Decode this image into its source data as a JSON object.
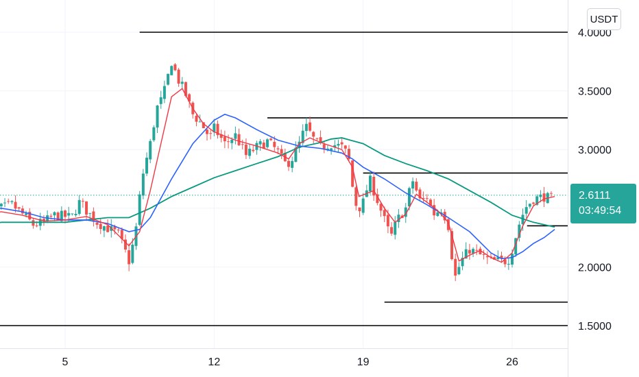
{
  "currency_label": "USDT",
  "last_price": {
    "value": "2.6111",
    "countdown": "03:49:54",
    "color": "#26a69a"
  },
  "colors": {
    "up": "#26a69a",
    "down": "#ef5350",
    "ma_fast": "#f23645",
    "ma_mid": "#2962ff",
    "ma_slow": "#089981",
    "grid": "#f0f3fa",
    "hline": "#000000"
  },
  "chart_data": {
    "type": "candlestick",
    "x_tick_labels": [
      "5",
      "12",
      "19",
      "26"
    ],
    "y_tick_labels": [
      "4.0000",
      "3.5000",
      "3.0000",
      "2.0000",
      "1.5000"
    ],
    "ylim": [
      1.42,
      4.25
    ],
    "grid": true,
    "horizontal_levels": [
      {
        "price": 4.0,
        "from_day": 8.5
      },
      {
        "price": 3.27,
        "from_day": 14.5
      },
      {
        "price": 2.8,
        "from_day": 19
      },
      {
        "price": 2.35,
        "from_day": 26.7
      },
      {
        "price": 1.7,
        "from_day": 20
      },
      {
        "price": 1.5,
        "from_day": 1
      }
    ],
    "close_path": [
      [
        1.0,
        2.48
      ],
      [
        1.5,
        2.47
      ],
      [
        2.0,
        2.5
      ],
      [
        2.5,
        2.53
      ],
      [
        3.0,
        2.45
      ],
      [
        3.5,
        2.36
      ],
      [
        4.0,
        2.38
      ],
      [
        4.5,
        2.44
      ],
      [
        5.0,
        2.43
      ],
      [
        5.3,
        2.42
      ],
      [
        5.7,
        2.56
      ],
      [
        6.0,
        2.48
      ],
      [
        6.5,
        2.38
      ],
      [
        7.0,
        2.33
      ],
      [
        7.5,
        2.28
      ],
      [
        8.0,
        2.05
      ],
      [
        8.3,
        2.28
      ],
      [
        8.6,
        2.75
      ],
      [
        9.0,
        3.05
      ],
      [
        9.3,
        3.35
      ],
      [
        9.6,
        3.45
      ],
      [
        10.0,
        3.75
      ],
      [
        10.3,
        3.6
      ],
      [
        10.6,
        3.5
      ],
      [
        11.0,
        3.3
      ],
      [
        11.4,
        3.22
      ],
      [
        11.8,
        3.1
      ],
      [
        12.0,
        3.18
      ],
      [
        12.5,
        3.05
      ],
      [
        13.0,
        3.12
      ],
      [
        13.5,
        2.95
      ],
      [
        14.0,
        3.02
      ],
      [
        14.5,
        3.07
      ],
      [
        15.0,
        2.98
      ],
      [
        15.3,
        2.88
      ],
      [
        15.6,
        2.9
      ],
      [
        16.0,
        3.05
      ],
      [
        16.3,
        3.2
      ],
      [
        16.7,
        3.08
      ],
      [
        17.0,
        3.02
      ],
      [
        17.5,
        3.05
      ],
      [
        18.0,
        3.02
      ],
      [
        18.3,
        2.95
      ],
      [
        18.6,
        2.55
      ],
      [
        18.8,
        2.5
      ],
      [
        19.0,
        2.55
      ],
      [
        19.3,
        2.75
      ],
      [
        19.6,
        2.6
      ],
      [
        20.0,
        2.4
      ],
      [
        20.3,
        2.25
      ],
      [
        20.6,
        2.4
      ],
      [
        21.0,
        2.5
      ],
      [
        21.3,
        2.75
      ],
      [
        21.7,
        2.55
      ],
      [
        22.0,
        2.6
      ],
      [
        22.3,
        2.45
      ],
      [
        22.7,
        2.5
      ],
      [
        23.0,
        2.35
      ],
      [
        23.3,
        1.9
      ],
      [
        23.6,
        2.05
      ],
      [
        24.0,
        2.15
      ],
      [
        24.5,
        2.1
      ],
      [
        25.0,
        2.05
      ],
      [
        25.4,
        2.05
      ],
      [
        25.8,
        2.05
      ],
      [
        26.0,
        2.15
      ],
      [
        26.3,
        2.35
      ],
      [
        26.6,
        2.5
      ],
      [
        27.0,
        2.58
      ],
      [
        27.5,
        2.6
      ],
      [
        27.8,
        2.58
      ],
      [
        28.0,
        2.61
      ]
    ],
    "ma_fast_path": [
      [
        1.0,
        2.44
      ],
      [
        2.0,
        2.47
      ],
      [
        3.0,
        2.44
      ],
      [
        4.0,
        2.39
      ],
      [
        5.0,
        2.4
      ],
      [
        6.0,
        2.43
      ],
      [
        7.0,
        2.36
      ],
      [
        8.0,
        2.18
      ],
      [
        8.5,
        2.3
      ],
      [
        9.0,
        2.65
      ],
      [
        9.5,
        3.05
      ],
      [
        10.0,
        3.45
      ],
      [
        10.5,
        3.52
      ],
      [
        11.0,
        3.35
      ],
      [
        11.5,
        3.22
      ],
      [
        12.0,
        3.15
      ],
      [
        13.0,
        3.08
      ],
      [
        14.0,
        3.03
      ],
      [
        15.0,
        2.97
      ],
      [
        15.5,
        2.92
      ],
      [
        16.0,
        3.05
      ],
      [
        16.5,
        3.1
      ],
      [
        17.0,
        3.06
      ],
      [
        18.0,
        3.0
      ],
      [
        18.5,
        2.85
      ],
      [
        18.8,
        2.6
      ],
      [
        19.5,
        2.65
      ],
      [
        20.0,
        2.5
      ],
      [
        20.5,
        2.38
      ],
      [
        21.0,
        2.45
      ],
      [
        21.5,
        2.62
      ],
      [
        22.0,
        2.55
      ],
      [
        22.5,
        2.48
      ],
      [
        23.0,
        2.38
      ],
      [
        23.5,
        2.05
      ],
      [
        24.0,
        2.1
      ],
      [
        24.5,
        2.14
      ],
      [
        25.0,
        2.08
      ],
      [
        25.5,
        2.04
      ],
      [
        26.0,
        2.12
      ],
      [
        26.5,
        2.35
      ],
      [
        27.0,
        2.52
      ],
      [
        27.5,
        2.58
      ],
      [
        28.0,
        2.6
      ]
    ],
    "ma_mid_path": [
      [
        1.0,
        2.5
      ],
      [
        2.0,
        2.5
      ],
      [
        3.0,
        2.47
      ],
      [
        4.0,
        2.42
      ],
      [
        5.0,
        2.4
      ],
      [
        6.0,
        2.4
      ],
      [
        7.0,
        2.37
      ],
      [
        8.0,
        2.3
      ],
      [
        8.5,
        2.32
      ],
      [
        9.0,
        2.42
      ],
      [
        10.0,
        2.75
      ],
      [
        11.0,
        3.05
      ],
      [
        12.0,
        3.25
      ],
      [
        12.5,
        3.3
      ],
      [
        13.0,
        3.27
      ],
      [
        14.0,
        3.17
      ],
      [
        15.0,
        3.08
      ],
      [
        16.0,
        3.03
      ],
      [
        17.0,
        3.01
      ],
      [
        18.0,
        2.97
      ],
      [
        18.5,
        2.92
      ],
      [
        19.0,
        2.85
      ],
      [
        20.0,
        2.75
      ],
      [
        21.0,
        2.63
      ],
      [
        22.0,
        2.53
      ],
      [
        23.0,
        2.42
      ],
      [
        24.0,
        2.3
      ],
      [
        25.0,
        2.12
      ],
      [
        25.5,
        2.07
      ],
      [
        26.0,
        2.08
      ],
      [
        26.5,
        2.13
      ],
      [
        27.0,
        2.2
      ],
      [
        27.5,
        2.25
      ],
      [
        28.0,
        2.32
      ]
    ],
    "ma_slow_path": [
      [
        1.0,
        2.35
      ],
      [
        2.0,
        2.38
      ],
      [
        3.0,
        2.38
      ],
      [
        4.0,
        2.38
      ],
      [
        5.0,
        2.38
      ],
      [
        6.0,
        2.4
      ],
      [
        7.0,
        2.42
      ],
      [
        8.0,
        2.42
      ],
      [
        9.0,
        2.5
      ],
      [
        10.0,
        2.6
      ],
      [
        11.0,
        2.68
      ],
      [
        12.0,
        2.76
      ],
      [
        13.0,
        2.82
      ],
      [
        14.0,
        2.88
      ],
      [
        15.0,
        2.94
      ],
      [
        16.0,
        3.02
      ],
      [
        17.0,
        3.06
      ],
      [
        17.5,
        3.09
      ],
      [
        18.0,
        3.1
      ],
      [
        19.0,
        3.05
      ],
      [
        20.0,
        2.95
      ],
      [
        21.0,
        2.88
      ],
      [
        22.0,
        2.82
      ],
      [
        23.0,
        2.75
      ],
      [
        24.0,
        2.65
      ],
      [
        25.0,
        2.55
      ],
      [
        26.0,
        2.44
      ],
      [
        27.0,
        2.38
      ],
      [
        28.0,
        2.34
      ]
    ]
  }
}
